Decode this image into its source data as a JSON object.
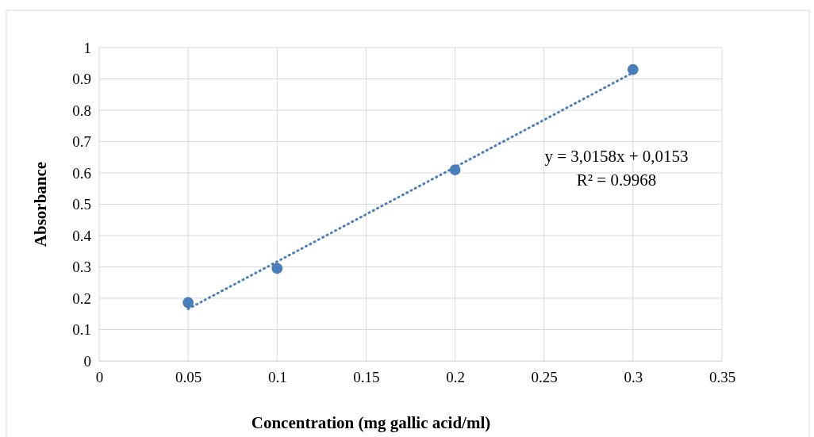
{
  "chart_data": {
    "type": "scatter",
    "xlabel": "Concentration  (mg gallic acid/ml)",
    "ylabel": "Absorbance",
    "xlim": [
      0,
      0.35
    ],
    "xticks": [
      0,
      0.05,
      0.1,
      0.15,
      0.2,
      0.25,
      0.3,
      0.35
    ],
    "ylim": [
      0,
      1
    ],
    "yticks": [
      0,
      0.1,
      0.2,
      0.3,
      0.4,
      0.5,
      0.6,
      0.7,
      0.8,
      0.9,
      1
    ],
    "grid": true,
    "marker": "circle",
    "series": [
      {
        "color": "#4a7ebb",
        "x": [
          0.05,
          0.1,
          0.2,
          0.3
        ],
        "values": [
          0.186,
          0.295,
          0.61,
          0.93
        ]
      },
      {
        "type": "line",
        "color": "#4a7ebb",
        "line_style": "dotted",
        "marker": "none",
        "x": [
          0.05,
          0.3
        ],
        "values": [
          0.166,
          0.92
        ]
      }
    ],
    "annotations": [
      "y = 3,0158x + 0,0153",
      "R² = 0.9968"
    ]
  }
}
